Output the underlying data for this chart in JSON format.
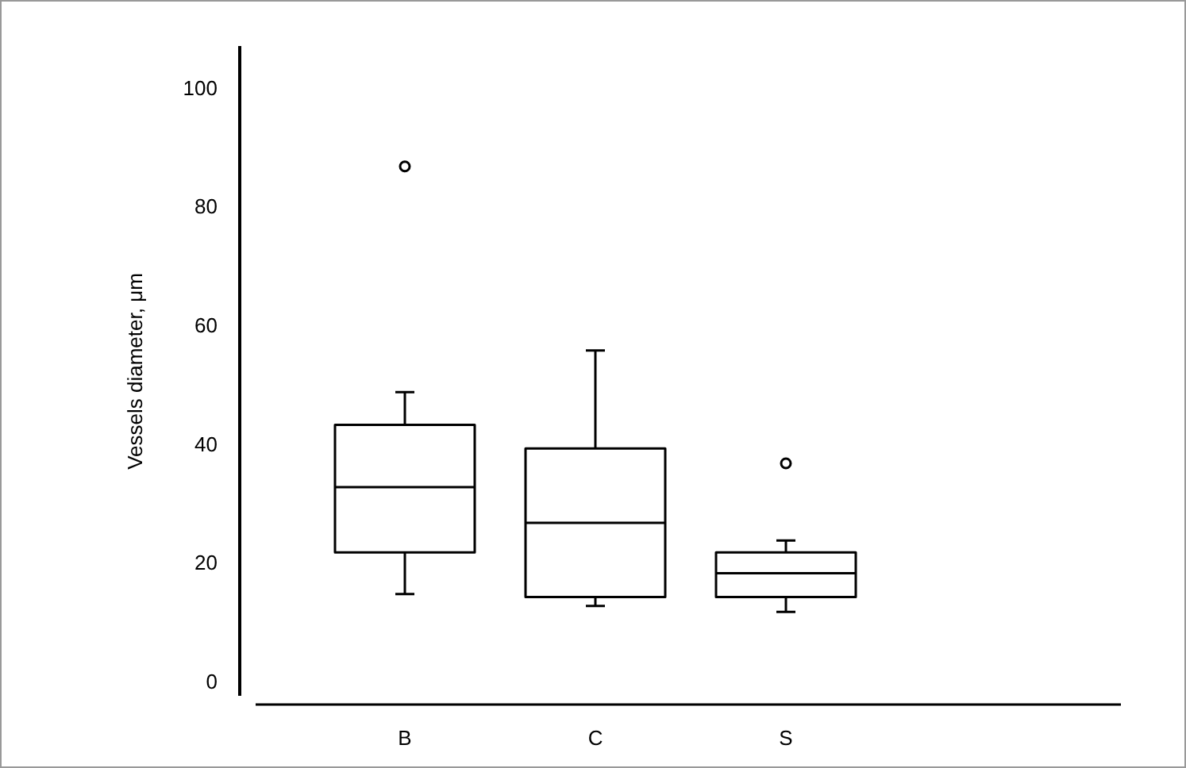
{
  "chart_data": {
    "type": "box",
    "categories": [
      "B",
      "C",
      "S"
    ],
    "ylabel": "Vessels diameter, μm",
    "ylim": [
      -2,
      107
    ],
    "yticks": [
      0,
      20,
      40,
      60,
      80,
      100
    ],
    "grid": false,
    "legend": false,
    "boxes": [
      {
        "low": 15,
        "q1": 22,
        "median": 33,
        "q3": 43.5,
        "high": 49,
        "outliers": [
          87
        ]
      },
      {
        "low": 13,
        "q1": 14.5,
        "median": 27,
        "q3": 39.5,
        "high": 56
      },
      {
        "low": 12,
        "q1": 14.5,
        "median": 18.5,
        "q3": 22,
        "high": 24,
        "outliers": [
          37
        ]
      }
    ]
  }
}
